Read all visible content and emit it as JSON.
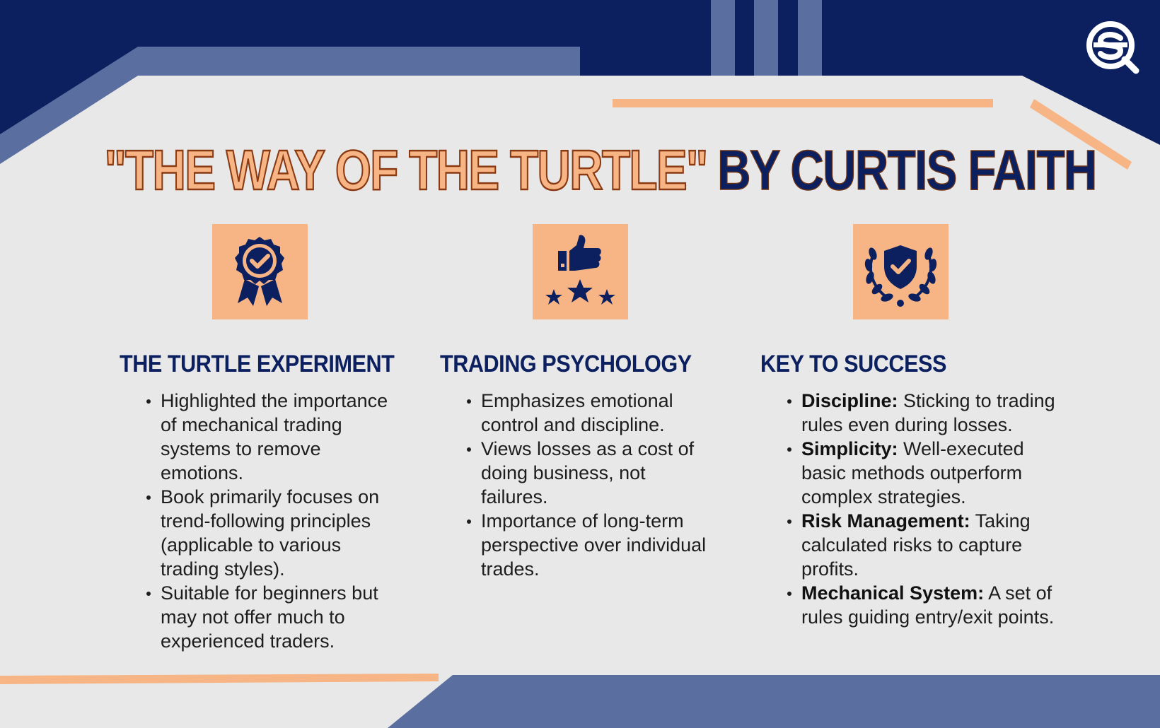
{
  "title": {
    "part1": "\"THE WAY OF THE TURTLE\"",
    "part2": "BY CURTIS FAITH"
  },
  "colors": {
    "navy": "#0c2060",
    "slate": "#5a6ea0",
    "peach": "#f7b585",
    "background": "#e8e8e8"
  },
  "columns": [
    {
      "icon": "award-ribbon-check-icon",
      "heading": "THE TURTLE EXPERIMENT",
      "bullets": [
        {
          "text": "Highlighted the importance of mechanical trading systems to remove emotions."
        },
        {
          "text": "Book primarily focuses on trend-following principles (applicable to various trading styles)."
        },
        {
          "text": "Suitable for beginners but may not offer much to experienced traders."
        }
      ]
    },
    {
      "icon": "thumbs-up-stars-icon",
      "heading": "TRADING PSYCHOLOGY",
      "bullets": [
        {
          "text": "Emphasizes emotional control and discipline."
        },
        {
          "text": "Views losses as a cost of doing business, not failures."
        },
        {
          "text": "Importance of long-term perspective over individual trades."
        }
      ]
    },
    {
      "icon": "shield-laurel-check-icon",
      "heading": "KEY TO SUCCESS",
      "bullets": [
        {
          "term": "Discipline:",
          "text": " Sticking to trading rules even during losses."
        },
        {
          "term": "Simplicity:",
          "text": " Well-executed basic methods outperform complex strategies."
        },
        {
          "term": "Risk Management:",
          "text": " Taking calculated risks to capture profits."
        },
        {
          "term": "Mechanical System:",
          "text": " A set of rules guiding entry/exit points."
        }
      ]
    }
  ],
  "logo": "brand-logo-icon"
}
